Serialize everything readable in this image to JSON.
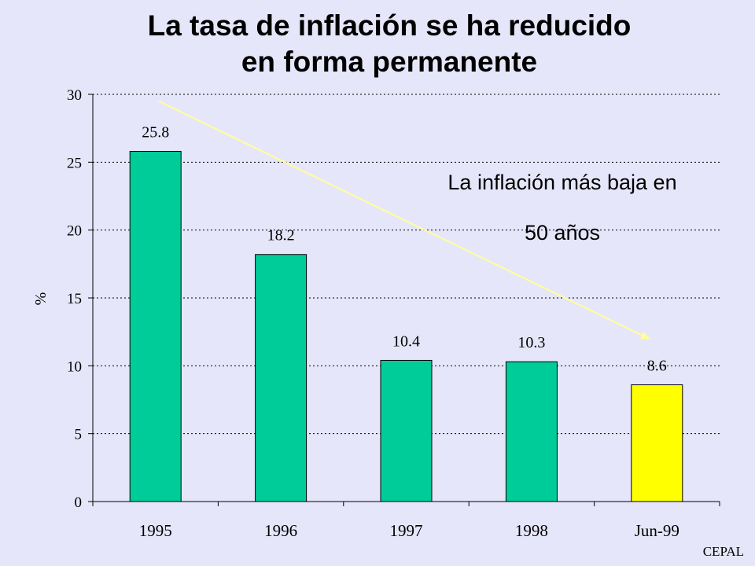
{
  "page": {
    "title_line1": "La tasa de inflación se ha reducido",
    "title_line2": "en forma permanente",
    "annotation_line1": "La inflación  más baja en",
    "annotation_line2": "50 años",
    "credit": "CEPAL"
  },
  "chart_data": {
    "type": "bar",
    "title": "La tasa de inflación se ha reducido en forma permanente",
    "xlabel": "",
    "ylabel": "%",
    "ylim": [
      0,
      30
    ],
    "yticks": [
      0,
      5,
      10,
      15,
      20,
      25,
      30
    ],
    "grid": true,
    "categories": [
      "1995",
      "1996",
      "1997",
      "1998",
      "Jun-99"
    ],
    "values": [
      25.8,
      18.2,
      10.4,
      10.3,
      8.6
    ],
    "data_labels": [
      "25.8",
      "18.2",
      "10.4",
      "10.3",
      "8.6"
    ],
    "bar_colors": [
      "#00cc99",
      "#00cc99",
      "#00cc99",
      "#00cc99",
      "#ffff00"
    ],
    "trend_arrow_color": "#ffff99"
  }
}
